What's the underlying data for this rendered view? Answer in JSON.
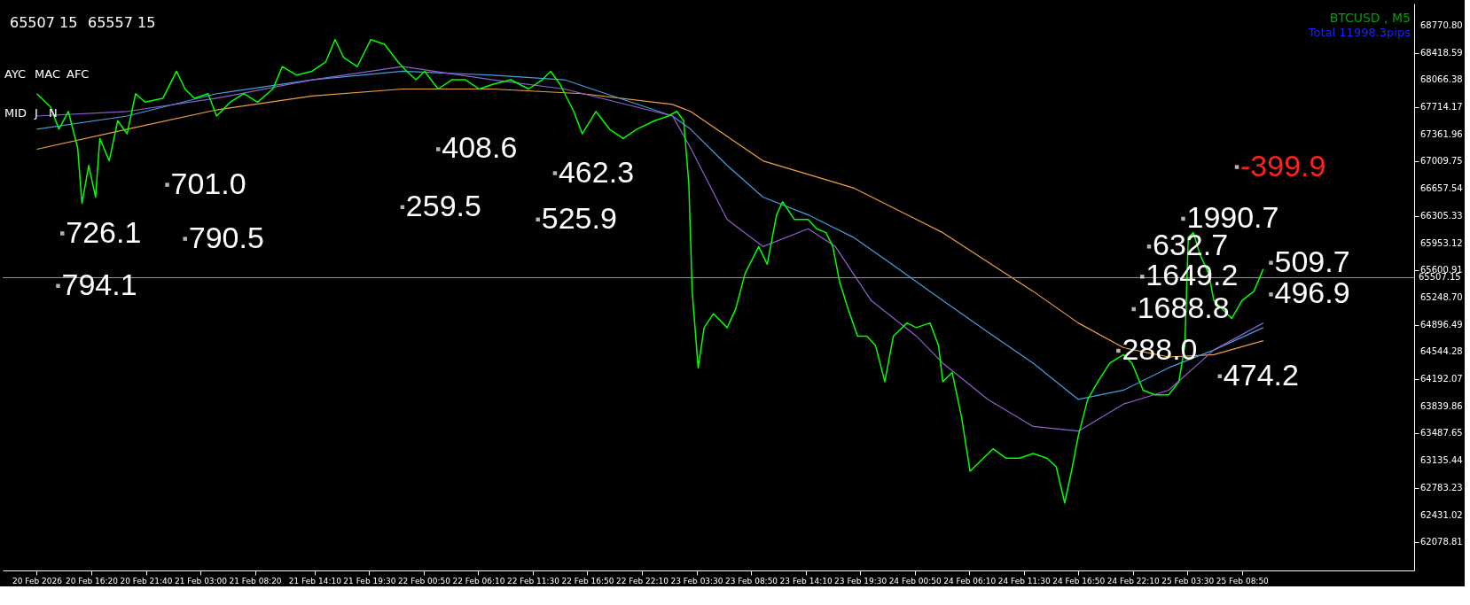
{
  "chart_data": {
    "type": "line",
    "title": "BTCUSD , M5",
    "subtitle": "Total  11998.3pips",
    "xlim": [
      "2026-02-20T07:40",
      "2026-02-26T01:40"
    ],
    "ylim": [
      61715,
      69057
    ],
    "xticks": [
      {
        "value": "2026-02-20T11:00",
        "label": "20 Feb 2026"
      },
      {
        "value": "2026-02-20T16:20",
        "label": "20 Feb 16:20"
      },
      {
        "value": "2026-02-20T21:40",
        "label": "20 Feb 21:40"
      },
      {
        "value": "2026-02-21T03:00",
        "label": "21 Feb 03:00"
      },
      {
        "value": "2026-02-21T08:20",
        "label": "21 Feb 08:20"
      },
      {
        "value": "2026-02-21T14:10",
        "label": "21 Feb 14:10"
      },
      {
        "value": "2026-02-21T19:30",
        "label": "21 Feb 19:30"
      },
      {
        "value": "2026-02-22T00:50",
        "label": "22 Feb 00:50"
      },
      {
        "value": "2026-02-22T06:10",
        "label": "22 Feb 06:10"
      },
      {
        "value": "2026-02-22T11:30",
        "label": "22 Feb 11:30"
      },
      {
        "value": "2026-02-22T16:50",
        "label": "22 Feb 16:50"
      },
      {
        "value": "2026-02-22T22:10",
        "label": "22 Feb 22:10"
      },
      {
        "value": "2026-02-23T03:30",
        "label": "23 Feb 03:30"
      },
      {
        "value": "2026-02-23T08:50",
        "label": "23 Feb 08:50"
      },
      {
        "value": "2026-02-23T14:10",
        "label": "23 Feb 14:10"
      },
      {
        "value": "2026-02-23T19:30",
        "label": "23 Feb 19:30"
      },
      {
        "value": "2026-02-24T00:50",
        "label": "24 Feb 00:50"
      },
      {
        "value": "2026-02-24T06:10",
        "label": "24 Feb 06:10"
      },
      {
        "value": "2026-02-24T11:30",
        "label": "24 Feb 11:30"
      },
      {
        "value": "2026-02-24T16:50",
        "label": "24 Feb 16:50"
      },
      {
        "value": "2026-02-24T22:10",
        "label": "24 Feb 22:10"
      },
      {
        "value": "2026-02-25T03:30",
        "label": "25 Feb 03:30"
      },
      {
        "value": "2026-02-25T08:50",
        "label": "25 Feb 08:50"
      }
    ],
    "yticks": [
      {
        "value": 68770.8,
        "label": "68770.80"
      },
      {
        "value": 68418.59,
        "label": "68418.59"
      },
      {
        "value": 68066.38,
        "label": "68066.38"
      },
      {
        "value": 67714.17,
        "label": "67714.17"
      },
      {
        "value": 67361.96,
        "label": "67361.96"
      },
      {
        "value": 67009.75,
        "label": "67009.75"
      },
      {
        "value": 66657.54,
        "label": "66657.54"
      },
      {
        "value": 66305.33,
        "label": "66305.33"
      },
      {
        "value": 65953.12,
        "label": "65953.12"
      },
      {
        "value": 65600.91,
        "label": "65600.91"
      },
      {
        "value": 65248.7,
        "label": "65248.70"
      },
      {
        "value": 64896.49,
        "label": "64896.49"
      },
      {
        "value": 64544.28,
        "label": "64544.28"
      },
      {
        "value": 64192.07,
        "label": "64192.07"
      },
      {
        "value": 63839.86,
        "label": "63839.86"
      },
      {
        "value": 63487.65,
        "label": "63487.65"
      },
      {
        "value": 63135.44,
        "label": "63135.44"
      },
      {
        "value": 62783.23,
        "label": "62783.23"
      },
      {
        "value": 62431.02,
        "label": "62431.02"
      },
      {
        "value": 62078.81,
        "label": "62078.81"
      }
    ],
    "grid": false,
    "series": [
      {
        "color": "#f0a040",
        "x": [
          "2026-02-20T11:00",
          "2026-02-20T19:50",
          "2026-02-21T04:35",
          "2026-02-21T13:55",
          "2026-02-21T22:45",
          "2026-02-22T07:35",
          "2026-02-22T16:20",
          "2026-02-23T01:10",
          "2026-02-23T02:55",
          "2026-02-23T10:00",
          "2026-02-23T18:50",
          "2026-02-24T03:35",
          "2026-02-24T12:25",
          "2026-02-24T16:50",
          "2026-02-24T21:15",
          "2026-02-25T01:40",
          "2026-02-25T06:05",
          "2026-02-25T10:55"
        ],
        "values": [
          67170,
          67430,
          67680,
          67860,
          67950,
          67950,
          67890,
          67750,
          67660,
          67020,
          66670,
          66090,
          65330,
          64920,
          64600,
          64480,
          64510,
          64690
        ]
      },
      {
        "color": "#40a0e0",
        "x": [
          "2026-02-20T11:00",
          "2026-02-20T19:50",
          "2026-02-21T04:35",
          "2026-02-21T13:55",
          "2026-02-21T22:45",
          "2026-02-22T07:35",
          "2026-02-22T14:35",
          "2026-02-23T01:10",
          "2026-02-23T02:55",
          "2026-02-23T06:30",
          "2026-02-23T10:00",
          "2026-02-23T14:25",
          "2026-02-23T18:50",
          "2026-02-23T23:15",
          "2026-02-24T03:35",
          "2026-02-24T08:00",
          "2026-02-24T12:25",
          "2026-02-24T16:50",
          "2026-02-24T21:15",
          "2026-02-25T01:40",
          "2026-02-25T06:05",
          "2026-02-25T10:55"
        ],
        "values": [
          67430,
          67600,
          67890,
          68070,
          68180,
          68130,
          68070,
          67600,
          67430,
          66960,
          66550,
          66320,
          66030,
          65620,
          65210,
          64800,
          64400,
          63930,
          64050,
          64340,
          64570,
          64860
        ]
      },
      {
        "color": "#9060d0",
        "x": [
          "2026-02-20T11:00",
          "2026-02-20T19:50",
          "2026-02-21T04:35",
          "2026-02-21T13:55",
          "2026-02-21T22:45",
          "2026-02-22T07:35",
          "2026-02-22T14:35",
          "2026-02-23T01:10",
          "2026-02-23T02:55",
          "2026-02-23T06:30",
          "2026-02-23T10:00",
          "2026-02-23T14:25",
          "2026-02-23T17:05",
          "2026-02-23T20:35",
          "2026-02-24T01:00",
          "2026-02-24T03:35",
          "2026-02-24T08:00",
          "2026-02-24T12:25",
          "2026-02-24T16:50",
          "2026-02-24T21:15",
          "2026-02-25T01:40",
          "2026-02-25T06:05",
          "2026-02-25T10:55"
        ],
        "values": [
          67600,
          67660,
          67830,
          68070,
          68240,
          68070,
          67950,
          67600,
          67190,
          66260,
          65910,
          66140,
          65910,
          65210,
          64750,
          64400,
          63930,
          63580,
          63520,
          63870,
          64050,
          64570,
          64920
        ]
      },
      {
        "color": "#00ff00",
        "x": [
          "2026-02-20T11:00",
          "2026-02-20T12:20",
          "2026-02-20T13:10",
          "2026-02-20T14:05",
          "2026-02-20T15:00",
          "2026-02-20T15:25",
          "2026-02-20T16:05",
          "2026-02-20T16:45",
          "2026-02-20T17:10",
          "2026-02-20T18:05",
          "2026-02-20T18:55",
          "2026-02-20T19:50",
          "2026-02-20T20:40",
          "2026-02-20T21:35",
          "2026-02-20T23:20",
          "2026-02-21T00:40",
          "2026-02-21T01:30",
          "2026-02-21T02:25",
          "2026-02-21T03:45",
          "2026-02-21T04:35",
          "2026-02-21T05:55",
          "2026-02-21T07:15",
          "2026-02-21T08:35",
          "2026-02-21T10:05",
          "2026-02-21T11:00",
          "2026-02-21T12:25",
          "2026-02-21T13:55",
          "2026-02-21T15:15",
          "2026-02-21T16:10",
          "2026-02-21T17:00",
          "2026-02-21T18:20",
          "2026-02-21T19:40",
          "2026-02-21T21:00",
          "2026-02-21T22:20",
          "2026-02-21T23:10",
          "2026-02-22T00:05",
          "2026-02-22T00:55",
          "2026-02-22T02:15",
          "2026-02-22T03:35",
          "2026-02-22T04:55",
          "2026-02-22T06:15",
          "2026-02-22T07:35",
          "2026-02-22T09:20",
          "2026-02-22T11:05",
          "2026-02-22T12:25",
          "2026-02-22T13:15",
          "2026-02-22T14:10",
          "2026-02-22T15:30",
          "2026-02-22T16:20",
          "2026-02-22T17:40",
          "2026-02-22T19:00",
          "2026-02-22T20:20",
          "2026-02-22T21:40",
          "2026-02-22T23:25",
          "2026-02-23T00:45",
          "2026-02-23T01:35",
          "2026-02-23T02:15",
          "2026-02-23T02:45",
          "2026-02-23T03:05",
          "2026-02-23T03:40",
          "2026-02-23T04:15",
          "2026-02-23T05:10",
          "2026-02-23T06:30",
          "2026-02-23T07:20",
          "2026-02-23T08:15",
          "2026-02-23T09:35",
          "2026-02-23T10:25",
          "2026-02-23T11:20",
          "2026-02-23T11:55",
          "2026-02-23T13:05",
          "2026-02-23T14:25",
          "2026-02-23T15:15",
          "2026-02-23T16:10",
          "2026-02-23T16:50",
          "2026-02-23T17:30",
          "2026-02-23T18:20",
          "2026-02-23T19:15",
          "2026-02-23T20:10",
          "2026-02-23T21:00",
          "2026-02-23T21:55",
          "2026-02-23T22:45",
          "2026-02-24T00:05",
          "2026-02-24T01:00",
          "2026-02-24T02:20",
          "2026-02-24T03:10",
          "2026-02-24T03:35",
          "2026-02-24T04:30",
          "2026-02-24T05:25",
          "2026-02-24T06:15",
          "2026-02-24T07:10",
          "2026-02-24T08:30",
          "2026-02-24T09:45",
          "2026-02-24T11:05",
          "2026-02-24T12:25",
          "2026-02-24T13:45",
          "2026-02-24T14:40",
          "2026-02-24T15:30",
          "2026-02-24T16:10",
          "2026-02-24T16:50",
          "2026-02-24T17:45",
          "2026-02-24T18:45",
          "2026-02-24T19:55",
          "2026-02-24T21:15",
          "2026-02-24T22:05",
          "2026-02-24T23:10",
          "2026-02-25T00:20",
          "2026-02-25T01:40",
          "2026-02-25T02:40",
          "2026-02-25T03:15",
          "2026-02-25T03:35",
          "2026-02-25T04:05",
          "2026-02-25T04:45",
          "2026-02-25T05:35",
          "2026-02-25T06:05",
          "2026-02-25T06:55",
          "2026-02-25T07:50",
          "2026-02-25T08:50",
          "2026-02-25T10:00",
          "2026-02-25T10:55"
        ],
        "values": [
          67890,
          67720,
          67430,
          67660,
          67190,
          66470,
          66960,
          66550,
          67310,
          67020,
          67540,
          67370,
          67890,
          67780,
          67830,
          68180,
          67950,
          67830,
          67890,
          67600,
          67780,
          67890,
          67780,
          67950,
          68240,
          68130,
          68180,
          68300,
          68590,
          68360,
          68240,
          68590,
          68530,
          68300,
          68180,
          68070,
          68180,
          67950,
          68070,
          68070,
          67950,
          68010,
          68070,
          67950,
          68070,
          68180,
          68010,
          67660,
          67370,
          67660,
          67430,
          67310,
          67430,
          67540,
          67600,
          67660,
          67540,
          66730,
          65330,
          64340,
          64860,
          65040,
          64860,
          65100,
          65560,
          65910,
          65680,
          66320,
          66490,
          66260,
          66260,
          66140,
          66090,
          65910,
          65450,
          65100,
          64750,
          64750,
          64630,
          64160,
          64750,
          64920,
          64860,
          64920,
          64630,
          64160,
          64280,
          63700,
          63000,
          63120,
          63290,
          63170,
          63170,
          63230,
          63170,
          63060,
          62590,
          63000,
          63460,
          63930,
          64160,
          64400,
          64510,
          64400,
          64050,
          63990,
          63990,
          64160,
          64630,
          66030,
          66090,
          65800,
          65560,
          65210,
          65100,
          64980,
          65210,
          65330,
          65620
        ]
      }
    ],
    "ref_lines": [
      {
        "axis": "y",
        "value": 65507.15,
        "label": "65507.15",
        "color": "#8c9aa8"
      }
    ],
    "annotations": [
      "65507 15",
      "65557 15",
      "AYC",
      "MAC",
      "AFC",
      "MID",
      "J",
      "N",
      {
        "text": "701.0",
        "x": "2026-02-20T23:45",
        "y": 66710
      },
      {
        "text": "726.1",
        "x": "2026-02-20T13:30",
        "y": 66080
      },
      {
        "text": "790.5",
        "x": "2026-02-21T01:30",
        "y": 66010
      },
      {
        "text": "794.1",
        "x": "2026-02-20T13:05",
        "y": 65400
      },
      {
        "text": "408.6",
        "x": "2026-02-22T02:15",
        "y": 67170
      },
      {
        "text": "259.5",
        "x": "2026-02-21T22:45",
        "y": 66420
      },
      {
        "text": "462.3",
        "x": "2026-02-22T13:40",
        "y": 66860
      },
      {
        "text": "525.9",
        "x": "2026-02-22T12:00",
        "y": 66260
      },
      {
        "text": "-399.9",
        "x": "2026-02-25T08:20",
        "y": 66940
      },
      {
        "text": "1990.7",
        "x": "2026-02-25T03:05",
        "y": 66270
      },
      {
        "text": "632.7",
        "x": "2026-02-24T23:45",
        "y": 65910
      },
      {
        "text": "1649.2",
        "x": "2026-02-24T23:05",
        "y": 65520
      },
      {
        "text": "1688.8",
        "x": "2026-02-24T22:15",
        "y": 65100
      },
      {
        "text": "288.0",
        "x": "2026-02-24T20:45",
        "y": 64560
      },
      {
        "text": "474.2",
        "x": "2026-02-25T06:40",
        "y": 64230
      },
      {
        "text": "509.7",
        "x": "2026-02-25T11:40",
        "y": 65700
      },
      {
        "text": "496.9",
        "x": "2026-02-25T11:40",
        "y": 65290
      }
    ]
  }
}
